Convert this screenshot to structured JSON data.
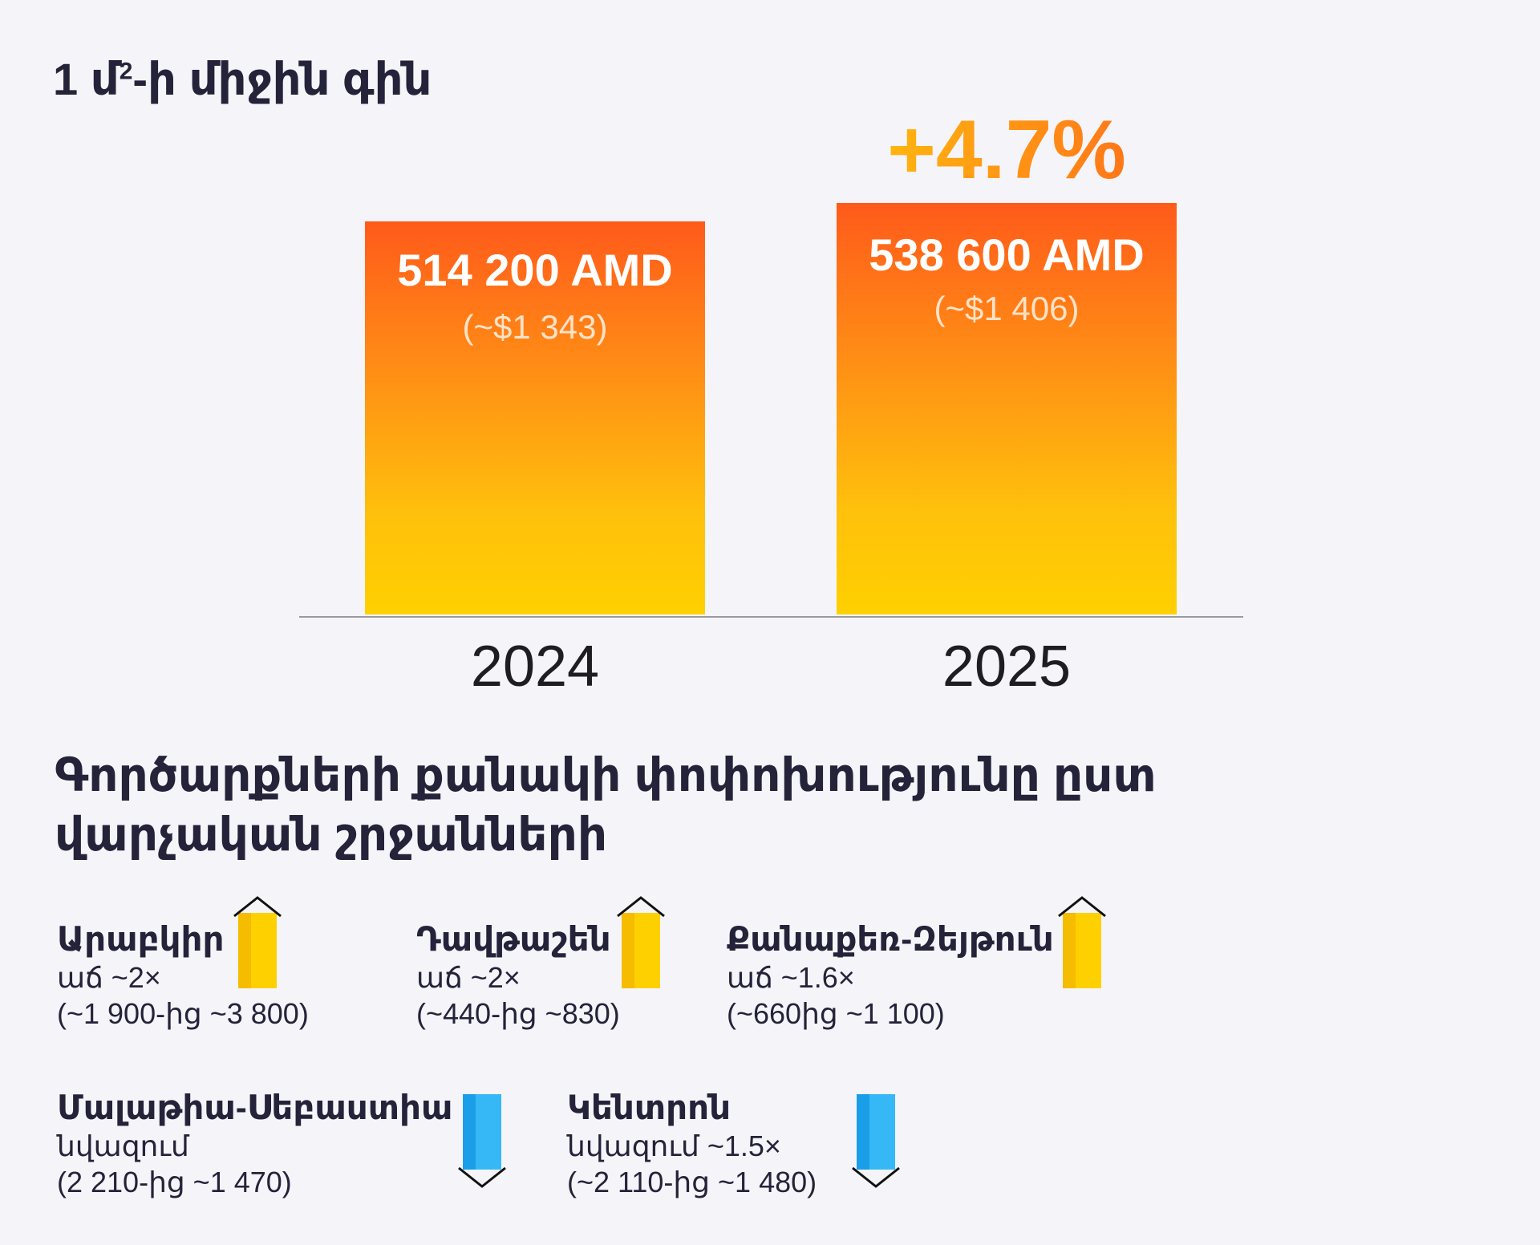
{
  "title": {
    "prefix": "1 մ",
    "sup": "2",
    "suffix": "-ի միջին գին"
  },
  "chart_data": {
    "type": "bar",
    "title": "1 մ²-ի միջին գին",
    "categories": [
      "2024",
      "2025"
    ],
    "values": [
      514200,
      538600
    ],
    "value_labels": [
      "514 200 AMD",
      "538 600 AMD"
    ],
    "usd_labels": [
      "(~$1 343)",
      "(~$1 406)"
    ],
    "unit": "AMD",
    "change_label": "+4.7%",
    "ylim": [
      0,
      560000
    ]
  },
  "section2": {
    "title": "Գործարքների քանակի փոփոխությունը ըստ վարչական շրջանների",
    "items": [
      {
        "name": "Արաբկիր",
        "change": "աճ ~2×",
        "range": "(~1 900-ից ~3 800)",
        "direction": "up"
      },
      {
        "name": "Դավթաշեն",
        "change": "աճ ~2×",
        "range": "(~440-ից ~830)",
        "direction": "up"
      },
      {
        "name": "Քանաքեռ-Զեյթուն",
        "change": "աճ ~1.6×",
        "range": "(~660ից ~1 100)",
        "direction": "up"
      },
      {
        "name": "Մալաթիա-Սեբաստիա",
        "change": "նվազում",
        "range": "(2 210-ից ~1 470)",
        "direction": "down"
      },
      {
        "name": "Կենտրոն",
        "change": "նվազում ~1.5×",
        "range": "(~2 110-ից ~1 480)",
        "direction": "down"
      }
    ]
  },
  "colors": {
    "up": "#ffc800",
    "down": "#1aa8f0",
    "text": "#25233a"
  }
}
